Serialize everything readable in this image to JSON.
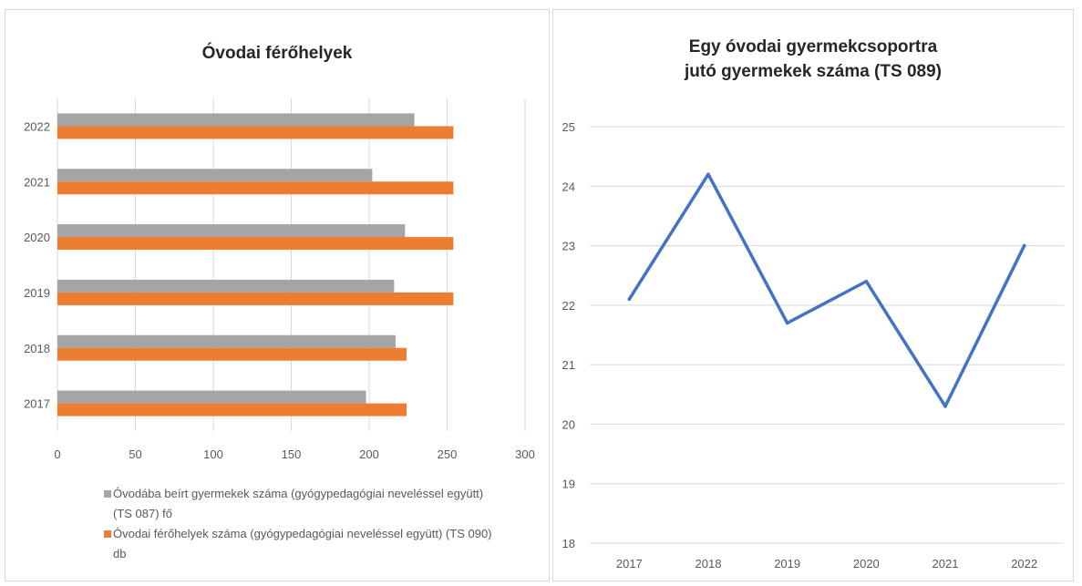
{
  "chart_data": [
    {
      "type": "bar",
      "orientation": "horizontal",
      "title": "Óvodai férőhelyek",
      "categories": [
        "2017",
        "2018",
        "2019",
        "2020",
        "2021",
        "2022"
      ],
      "series": [
        {
          "name": "Óvodába beírt gyermekek száma (gyógypedagógiai neveléssel együtt) (TS 087) fő",
          "color": "#a5a5a5",
          "values": [
            198,
            217,
            216,
            223,
            202,
            229
          ]
        },
        {
          "name": "Óvodai férőhelyek száma (gyógypedagógiai neveléssel együtt) (TS 090) db",
          "color": "#ed7d31",
          "values": [
            224,
            224,
            254,
            254,
            254,
            254
          ]
        }
      ],
      "xlim": [
        0,
        300
      ],
      "xticks": [
        "0",
        "50",
        "100",
        "150",
        "200",
        "250",
        "300"
      ],
      "grid": true,
      "legend_position": "bottom"
    },
    {
      "type": "line",
      "title": "Egy óvodai gyermekcsoportra jutó gyermekek száma (TS 089)",
      "title_lines": [
        "Egy óvodai gyermekcsoportra",
        "jutó gyermekek száma (TS 089)"
      ],
      "x": [
        "2017",
        "2018",
        "2019",
        "2020",
        "2021",
        "2022"
      ],
      "series": [
        {
          "color": "#4472c4",
          "values": [
            22.1,
            24.2,
            21.7,
            22.4,
            20.3,
            23.0
          ]
        }
      ],
      "ylim": [
        18,
        25
      ],
      "yticks": [
        "18",
        "19",
        "20",
        "21",
        "22",
        "23",
        "24",
        "25"
      ],
      "grid": true
    }
  ]
}
